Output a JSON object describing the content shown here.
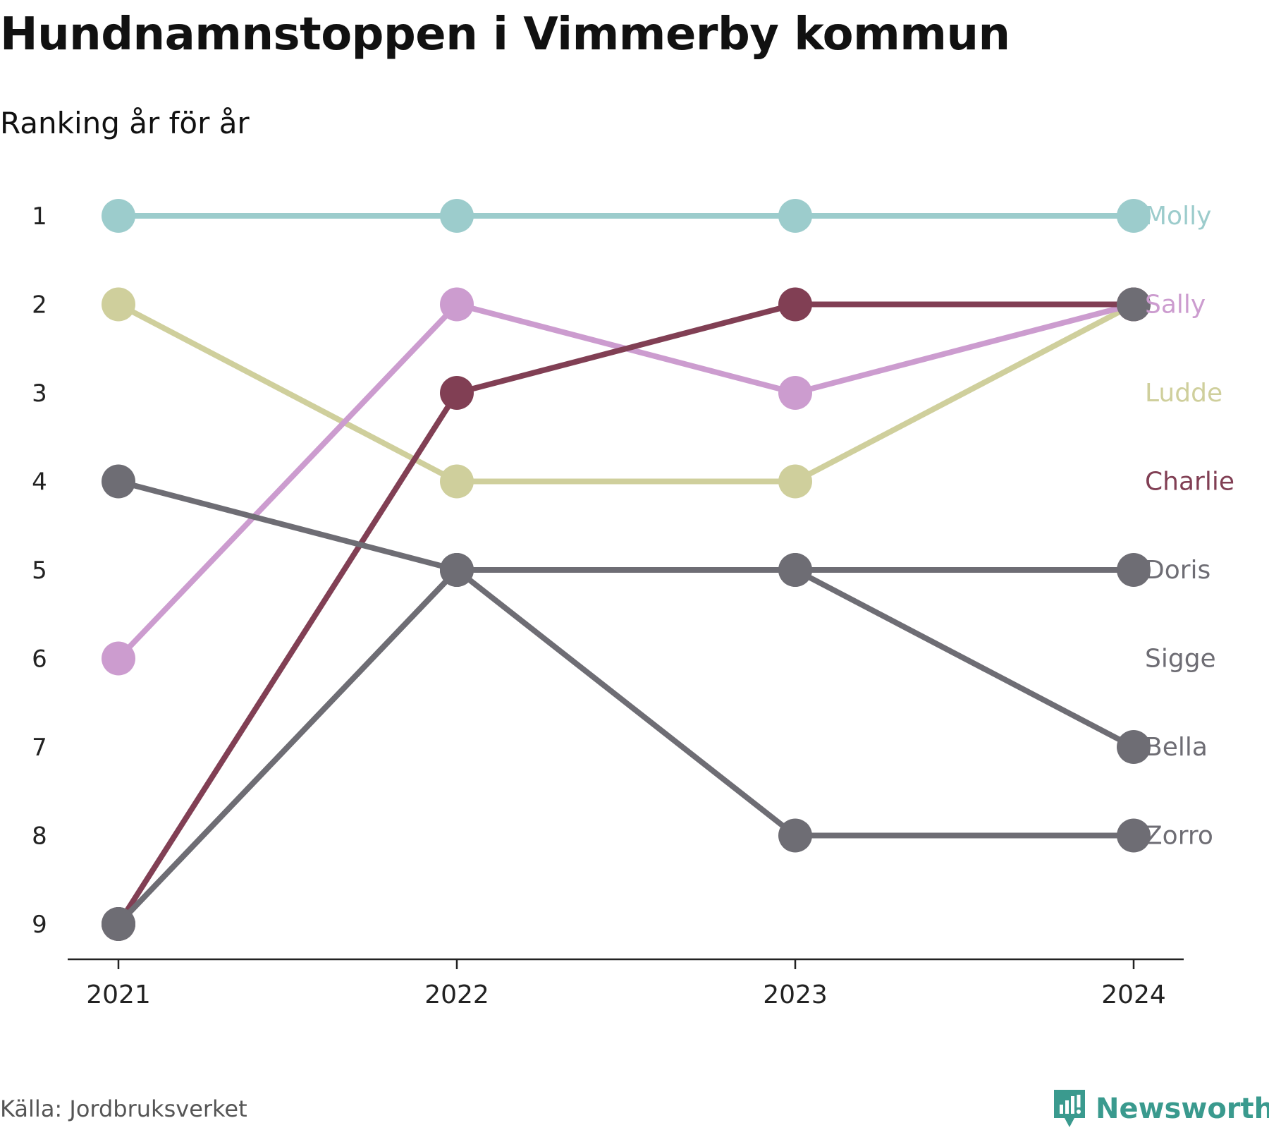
{
  "header": {
    "title": "Hundnamnstoppen i Vimmerby kommun",
    "subtitle": "Ranking år för år"
  },
  "footer": {
    "source": "Källa: Jordbruksverket",
    "brand": "Newsworthy"
  },
  "colors": {
    "molly": "#9ccccc",
    "sally": "#cc9ccf",
    "ludde": "#cfcf9c",
    "charlie": "#813f54",
    "gray": "#6e6d74",
    "axis": "#222222",
    "brand": "#3a9a8e"
  },
  "icons": {
    "brand_logo": "bar-chart-speech-bubble-icon"
  },
  "chart_data": {
    "type": "line",
    "subtype": "bump",
    "x": [
      2021,
      2022,
      2023,
      2024
    ],
    "y_ticks": [
      1,
      2,
      3,
      4,
      5,
      6,
      7,
      8,
      9
    ],
    "ylim": [
      1,
      9
    ],
    "y_inverted": true,
    "grid": false,
    "legend": "right-end labels",
    "series": [
      {
        "name": "Molly",
        "color": "#9ccccc",
        "ranks": [
          1,
          1,
          1,
          1
        ]
      },
      {
        "name": "Sally",
        "color": "#cc9ccf",
        "ranks": [
          6,
          2,
          3,
          2
        ]
      },
      {
        "name": "Ludde",
        "color": "#cfcf9c",
        "ranks": [
          2,
          4,
          4,
          2
        ]
      },
      {
        "name": "Charlie",
        "color": "#813f54",
        "ranks": [
          9,
          3,
          2,
          2
        ]
      },
      {
        "name": "Doris",
        "color": "#6e6d74",
        "ranks": [
          4,
          5,
          5,
          5
        ]
      },
      {
        "name": "Sigge",
        "color": "#6e6d74",
        "ranks": [
          null,
          null,
          null,
          null
        ]
      },
      {
        "name": "Bella",
        "color": "#6e6d74",
        "ranks": [
          9,
          5,
          5,
          7
        ]
      },
      {
        "name": "Zorro",
        "color": "#6e6d74",
        "ranks": [
          9,
          5,
          8,
          8
        ]
      }
    ],
    "end_label_rank_slots": {
      "Molly": 1,
      "Sally": 2,
      "Ludde": 3,
      "Charlie": 4,
      "Doris": 5,
      "Sigge": 6,
      "Bella": 7,
      "Zorro": 8
    },
    "draw_order": [
      "Molly",
      "Ludde",
      "Sally",
      "Charlie",
      "Doris",
      "Bella",
      "Zorro"
    ],
    "point_overrides_2024_rank2_on_top": "gray"
  }
}
